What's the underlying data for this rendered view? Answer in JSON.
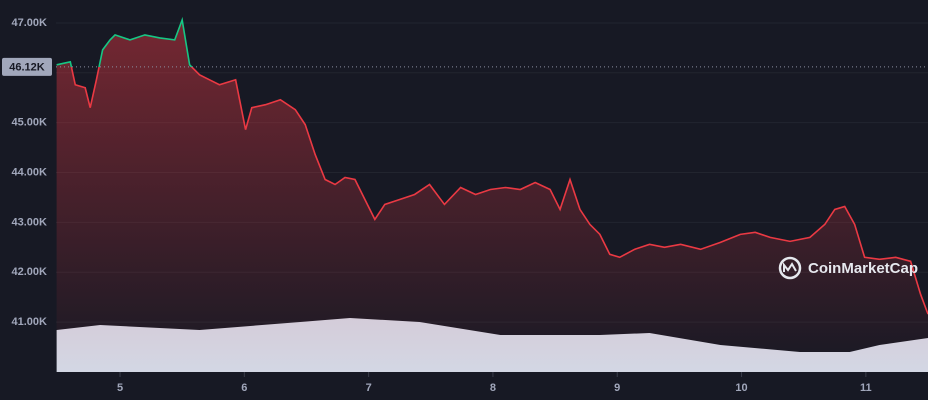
{
  "chart_data": {
    "type": "line",
    "xlim": [
      4.485,
      11.5
    ],
    "xticks": [
      5,
      6,
      7,
      8,
      9,
      10,
      11
    ],
    "ylim": [
      40000,
      47460
    ],
    "yticks": [
      {
        "value": 41000,
        "label": "41.00K"
      },
      {
        "value": 42000,
        "label": "42.00K"
      },
      {
        "value": 43000,
        "label": "43.00K"
      },
      {
        "value": 44000,
        "label": "44.00K"
      },
      {
        "value": 45000,
        "label": "45.00K"
      },
      {
        "value": 46000,
        "label": "46.00K"
      },
      {
        "value": 47000,
        "label": "47.00K"
      }
    ],
    "y2lim": [
      0,
      372
    ],
    "grid": true,
    "reference": {
      "value": 46120,
      "label": "46.12K"
    },
    "watermark": "CoinMarketCap",
    "series": [
      {
        "color": "#ea3943",
        "color_above": "#16c784",
        "x": [
          4.49,
          4.6,
          4.64,
          4.72,
          4.76,
          4.81,
          4.86,
          4.92,
          4.96,
          5.08,
          5.2,
          5.32,
          5.44,
          5.5,
          5.56,
          5.64,
          5.72,
          5.8,
          5.93,
          6.01,
          6.06,
          6.17,
          6.29,
          6.41,
          6.49,
          6.57,
          6.65,
          6.73,
          6.81,
          6.89,
          6.97,
          7.05,
          7.13,
          7.25,
          7.37,
          7.49,
          7.61,
          7.74,
          7.86,
          7.98,
          8.1,
          8.22,
          8.34,
          8.46,
          8.54,
          8.62,
          8.7,
          8.78,
          8.86,
          8.94,
          9.02,
          9.14,
          9.26,
          9.38,
          9.51,
          9.67,
          9.83,
          9.99,
          10.11,
          10.23,
          10.39,
          10.55,
          10.67,
          10.75,
          10.83,
          10.91,
          10.99,
          11.11,
          11.24,
          11.36,
          11.44,
          11.5
        ],
        "values": [
          46160,
          46220,
          45760,
          45700,
          45300,
          45860,
          46460,
          46660,
          46760,
          46660,
          46760,
          46700,
          46660,
          47060,
          46160,
          45960,
          45860,
          45760,
          45860,
          44860,
          45300,
          45360,
          45460,
          45260,
          44960,
          44360,
          43860,
          43760,
          43900,
          43860,
          43460,
          43060,
          43360,
          43460,
          43560,
          43760,
          43360,
          43700,
          43560,
          43660,
          43700,
          43660,
          43800,
          43660,
          43260,
          43860,
          43260,
          42960,
          42760,
          42360,
          42300,
          42460,
          42560,
          42500,
          42560,
          42460,
          42600,
          42760,
          42800,
          42700,
          42620,
          42700,
          42960,
          43260,
          43320,
          42960,
          42300,
          42260,
          42300,
          42220,
          41560,
          41160
        ]
      },
      {
        "axis": "y2",
        "color": "#d3d7e4",
        "x": [
          4.49,
          4.84,
          5.64,
          6.45,
          6.85,
          7.41,
          8.06,
          8.86,
          9.26,
          9.83,
          10.47,
          10.87,
          11.11,
          11.5
        ],
        "values": [
          42,
          47,
          42,
          50,
          54,
          50,
          37,
          37,
          39,
          27,
          20,
          20,
          27,
          34
        ]
      }
    ]
  }
}
